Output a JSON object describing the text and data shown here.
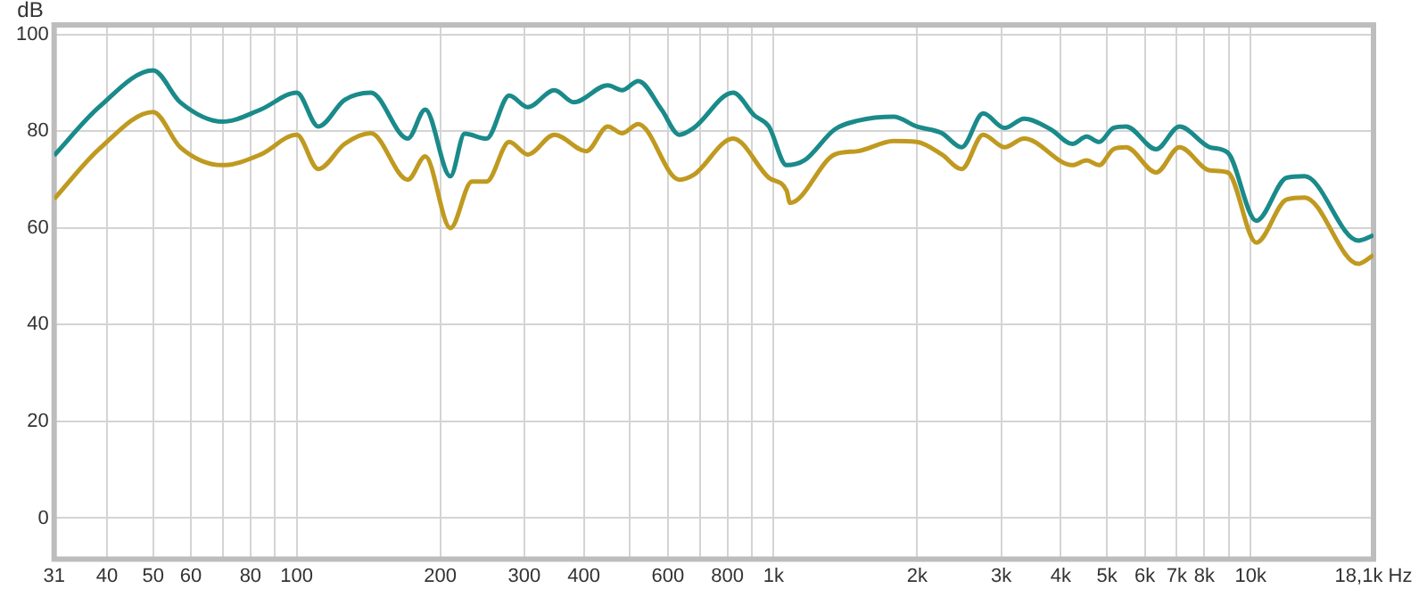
{
  "chart_data": {
    "type": "line",
    "ylabel": "dB",
    "log": "x",
    "xlim": [
      31,
      18100
    ],
    "ylim": [
      -8.5,
      102
    ],
    "xticks": [
      31,
      40,
      50,
      60,
      {
        "value": 70,
        "label": null
      },
      80,
      {
        "value": 90,
        "label": null
      },
      100,
      200,
      300,
      400,
      {
        "value": 500,
        "label": null
      },
      600,
      {
        "value": 700,
        "label": null
      },
      800,
      {
        "value": 900,
        "label": null
      },
      {
        "value": 1000,
        "label": "1k"
      },
      {
        "value": 2000,
        "label": "2k"
      },
      {
        "value": 3000,
        "label": "3k"
      },
      {
        "value": 4000,
        "label": "4k"
      },
      {
        "value": 5000,
        "label": "5k"
      },
      {
        "value": 6000,
        "label": "6k"
      },
      {
        "value": 7000,
        "label": "7k"
      },
      {
        "value": 8000,
        "label": "8k"
      },
      {
        "value": 9000,
        "label": null
      },
      {
        "value": 10000,
        "label": "10k"
      },
      {
        "value": 18100,
        "label": "18,1k Hz"
      }
    ],
    "yticks": [
      0,
      20,
      40,
      60,
      80,
      100
    ],
    "grid": true,
    "legend": false,
    "marker": "none",
    "line_style": "solid",
    "series": [
      {
        "color": "#1a8a8a",
        "x": [
          31,
          38.5,
          50,
          57,
          70,
          84,
          100,
          111,
          126,
          143,
          171,
          186,
          210,
          225,
          250,
          279,
          305,
          347,
          381,
          449,
          481,
          520,
          582,
          634,
          680,
          822,
          911,
          977,
          1064,
          1160,
          1343,
          1502,
          1785,
          1996,
          2253,
          2478,
          2750,
          3048,
          3350,
          3811,
          4228,
          4531,
          4813,
          5157,
          5479,
          6340,
          7096,
          8218,
          8955,
          10280,
          11900,
          12980,
          16820,
          18100
        ],
        "values": [
          75,
          85,
          92.6,
          86,
          82,
          84.5,
          88,
          81,
          86.5,
          88,
          78.5,
          84.5,
          70.7,
          79.5,
          78.5,
          87.4,
          85,
          88.5,
          86,
          89.5,
          88.5,
          90.4,
          84.5,
          79.3,
          80.7,
          88,
          83.3,
          81,
          73,
          74,
          80.4,
          82.2,
          83,
          81,
          79.6,
          76.7,
          83.7,
          80.7,
          82.6,
          80.4,
          77.4,
          78.9,
          77.8,
          80.7,
          81,
          76.3,
          81,
          76.7,
          75.6,
          61.5,
          70.4,
          70.7,
          57.4,
          58.5
        ]
      },
      {
        "color": "#c09a20",
        "x": [
          31,
          38.5,
          50,
          57,
          70,
          84,
          100,
          111,
          126,
          143,
          171,
          186,
          210,
          233,
          250,
          279,
          305,
          347,
          405,
          449,
          481,
          520,
          634,
          680,
          822,
          977,
          1064,
          1082,
          1343,
          1502,
          1785,
          1996,
          2253,
          2478,
          2750,
          3048,
          3350,
          4228,
          4531,
          4813,
          5157,
          5479,
          6340,
          7096,
          8218,
          8955,
          10280,
          11900,
          12980,
          16820,
          18100
        ],
        "values": [
          66,
          76.3,
          84,
          76.7,
          73,
          75.2,
          79.3,
          72.2,
          77.4,
          79.6,
          70,
          74.8,
          60,
          69.6,
          69.6,
          77.8,
          75.2,
          79.3,
          75.9,
          81,
          79.6,
          81.5,
          70,
          71,
          78.5,
          70.4,
          67.8,
          65.2,
          75.2,
          75.9,
          78,
          77.8,
          75.2,
          72.2,
          79.3,
          76.7,
          78.5,
          73,
          74,
          73,
          76.3,
          76.7,
          71.5,
          76.7,
          71.9,
          71.5,
          57,
          65.9,
          66.3,
          52.6,
          54.4
        ]
      }
    ]
  }
}
